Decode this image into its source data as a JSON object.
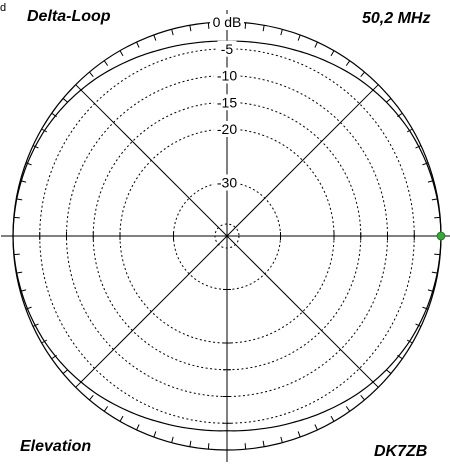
{
  "header": {
    "left_title": "Delta-Loop",
    "right_title": "50,2 MHz",
    "edge_mark": "d"
  },
  "footer": {
    "left_label": "Elevation",
    "right_label": "DK7ZB"
  },
  "chart_data": {
    "type": "polar",
    "plane": "Elevation",
    "radial_ticks": [
      {
        "value": 0,
        "label": "0 dB"
      },
      {
        "value": -5,
        "label": "-5"
      },
      {
        "value": -10,
        "label": "-10"
      },
      {
        "value": -15,
        "label": "-15"
      },
      {
        "value": -20,
        "label": "-20"
      },
      {
        "value": -30,
        "label": "-30"
      }
    ],
    "radial_unit": "dB",
    "radial_min": -40,
    "radial_max": 0,
    "spokes_every_deg": 45,
    "pattern": {
      "angle_deg": [
        0,
        10,
        20,
        30,
        40,
        50,
        60,
        70,
        80,
        90,
        100,
        110,
        120,
        130,
        140,
        150,
        160,
        170,
        180,
        190,
        200,
        210,
        220,
        230,
        240,
        250,
        260,
        270,
        280,
        290,
        300,
        310,
        320,
        330,
        340,
        350
      ],
      "gain_db": [
        0,
        -0.1,
        -0.3,
        -0.6,
        -1.1,
        -1.7,
        -2.4,
        -3.0,
        -3.4,
        -3.6,
        -3.4,
        -3.0,
        -2.4,
        -1.7,
        -1.1,
        -0.6,
        -0.3,
        -0.1,
        0,
        -0.1,
        -0.3,
        -0.6,
        -1.1,
        -1.7,
        -2.4,
        -3.0,
        -3.4,
        -3.6,
        -3.4,
        -3.0,
        -2.4,
        -1.7,
        -1.1,
        -0.6,
        -0.3,
        -0.1
      ]
    },
    "marker": {
      "angle_deg": 0,
      "gain_db": 0,
      "color": "#3aa63a"
    },
    "colors": {
      "pattern": "#000000",
      "grid": "#000000",
      "marker": "#3aa63a"
    }
  }
}
